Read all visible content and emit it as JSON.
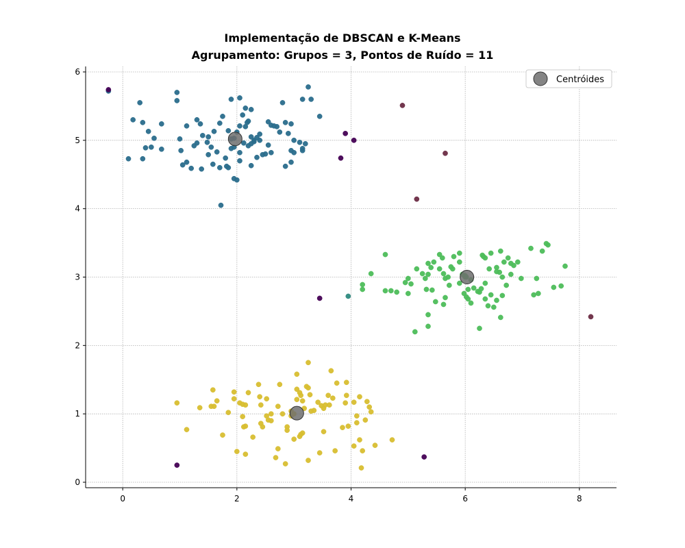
{
  "chart_data": {
    "type": "scatter",
    "title": "Implementação de DBSCAN e K-Means",
    "subtitle": "Agrupamento: Grupos = 3, Pontos de Ruído = 11",
    "xlim": [
      -0.65,
      8.65
    ],
    "ylim": [
      -0.08,
      6.08
    ],
    "x_ticks": [
      0,
      2,
      4,
      6,
      8
    ],
    "x_tick_labels": [
      "0",
      "2",
      "4",
      "6",
      "8"
    ],
    "y_ticks": [
      0,
      1,
      2,
      3,
      4,
      5,
      6
    ],
    "y_tick_labels": [
      "0",
      "1",
      "2",
      "3",
      "4",
      "5",
      "6"
    ],
    "grid": true,
    "legend": {
      "placement": "top-right",
      "entries": [
        "Centróides"
      ]
    },
    "series": [
      {
        "color": "#2a6d8c",
        "points": [
          [
            -0.25,
            5.72
          ],
          [
            0.95,
            5.7
          ],
          [
            0.95,
            5.58
          ],
          [
            0.3,
            5.55
          ],
          [
            0.18,
            5.3
          ],
          [
            0.35,
            5.26
          ],
          [
            0.45,
            5.13
          ],
          [
            0.68,
            5.24
          ],
          [
            0.55,
            5.03
          ],
          [
            0.4,
            4.89
          ],
          [
            0.5,
            4.9
          ],
          [
            0.68,
            4.87
          ],
          [
            0.1,
            4.73
          ],
          [
            0.35,
            4.73
          ],
          [
            1.0,
            5.02
          ],
          [
            1.02,
            4.85
          ],
          [
            1.12,
            5.21
          ],
          [
            1.3,
            5.3
          ],
          [
            1.36,
            5.24
          ],
          [
            1.4,
            5.07
          ],
          [
            1.5,
            5.05
          ],
          [
            1.6,
            5.13
          ],
          [
            1.7,
            5.25
          ],
          [
            1.75,
            5.35
          ],
          [
            1.85,
            5.14
          ],
          [
            1.9,
            5.6
          ],
          [
            2.05,
            5.62
          ],
          [
            2.15,
            5.47
          ],
          [
            2.25,
            5.45
          ],
          [
            2.2,
            5.28
          ],
          [
            2.1,
            5.37
          ],
          [
            2.18,
            5.26
          ],
          [
            2.05,
            5.21
          ],
          [
            2.15,
            5.2
          ],
          [
            2.25,
            5.05
          ],
          [
            2.3,
            5.0
          ],
          [
            2.25,
            4.95
          ],
          [
            2.35,
            5.04
          ],
          [
            2.4,
            5.09
          ],
          [
            2.5,
            4.8
          ],
          [
            2.55,
            5.27
          ],
          [
            2.6,
            5.22
          ],
          [
            2.65,
            5.21
          ],
          [
            2.7,
            5.2
          ],
          [
            2.55,
            4.93
          ],
          [
            2.6,
            4.82
          ],
          [
            2.8,
            5.55
          ],
          [
            2.85,
            5.26
          ],
          [
            2.75,
            5.12
          ],
          [
            2.9,
            5.1
          ],
          [
            2.95,
            5.24
          ],
          [
            3.0,
            5.0
          ],
          [
            3.1,
            4.97
          ],
          [
            3.2,
            4.95
          ],
          [
            3.15,
            5.6
          ],
          [
            3.3,
            5.6
          ],
          [
            3.25,
            5.78
          ],
          [
            3.45,
            5.35
          ],
          [
            1.3,
            4.96
          ],
          [
            1.25,
            4.92
          ],
          [
            1.48,
            4.97
          ],
          [
            1.55,
            4.9
          ],
          [
            1.65,
            4.83
          ],
          [
            1.5,
            4.79
          ],
          [
            1.58,
            4.65
          ],
          [
            1.7,
            4.6
          ],
          [
            1.85,
            4.6
          ],
          [
            1.82,
            4.62
          ],
          [
            1.12,
            4.68
          ],
          [
            1.05,
            4.64
          ],
          [
            1.2,
            4.59
          ],
          [
            1.38,
            4.58
          ],
          [
            1.9,
            4.88
          ],
          [
            1.95,
            5.03
          ],
          [
            2.05,
            4.82
          ],
          [
            2.05,
            4.7
          ],
          [
            2.2,
            4.92
          ],
          [
            2.25,
            4.63
          ],
          [
            2.35,
            4.75
          ],
          [
            2.45,
            4.79
          ],
          [
            2.85,
            4.62
          ],
          [
            2.95,
            4.68
          ],
          [
            2.95,
            4.85
          ],
          [
            3.0,
            4.82
          ],
          [
            3.15,
            4.88
          ],
          [
            1.95,
            4.44
          ],
          [
            2.0,
            4.42
          ],
          [
            1.72,
            4.05
          ],
          [
            1.8,
            4.74
          ],
          [
            1.95,
            4.9
          ],
          [
            1.9,
            5.02
          ],
          [
            2.0,
            5.12
          ],
          [
            2.3,
            4.98
          ],
          [
            2.12,
            4.96
          ],
          [
            2.4,
            5.0
          ],
          [
            3.15,
            4.85
          ]
        ]
      },
      {
        "color": "#4dbd5a",
        "points": [
          [
            4.6,
            3.33
          ],
          [
            4.35,
            3.05
          ],
          [
            4.2,
            2.89
          ],
          [
            4.2,
            2.82
          ],
          [
            4.6,
            2.8
          ],
          [
            4.7,
            2.8
          ],
          [
            4.8,
            2.78
          ],
          [
            4.95,
            2.92
          ],
          [
            5.0,
            2.98
          ],
          [
            5.0,
            2.76
          ],
          [
            5.05,
            2.9
          ],
          [
            5.15,
            3.12
          ],
          [
            5.3,
            2.98
          ],
          [
            5.35,
            3.04
          ],
          [
            5.35,
            3.2
          ],
          [
            5.4,
            3.14
          ],
          [
            5.45,
            3.22
          ],
          [
            5.55,
            3.12
          ],
          [
            5.55,
            3.33
          ],
          [
            5.6,
            3.28
          ],
          [
            5.62,
            3.05
          ],
          [
            5.65,
            2.98
          ],
          [
            5.7,
            3.0
          ],
          [
            5.72,
            2.88
          ],
          [
            5.75,
            3.15
          ],
          [
            5.78,
            3.12
          ],
          [
            5.8,
            3.3
          ],
          [
            5.9,
            3.35
          ],
          [
            5.9,
            3.22
          ],
          [
            5.95,
            3.04
          ],
          [
            6.02,
            3.0
          ],
          [
            5.9,
            2.91
          ],
          [
            5.98,
            2.76
          ],
          [
            6.02,
            2.71
          ],
          [
            6.05,
            2.68
          ],
          [
            6.1,
            2.62
          ],
          [
            6.15,
            2.84
          ],
          [
            6.22,
            2.79
          ],
          [
            6.25,
            2.78
          ],
          [
            6.28,
            2.83
          ],
          [
            6.32,
            3.3
          ],
          [
            6.35,
            3.28
          ],
          [
            6.42,
            3.12
          ],
          [
            6.45,
            3.35
          ],
          [
            6.55,
            3.14
          ],
          [
            6.6,
            3.07
          ],
          [
            6.62,
            3.38
          ],
          [
            6.68,
            3.22
          ],
          [
            6.75,
            3.28
          ],
          [
            6.8,
            3.2
          ],
          [
            6.85,
            3.17
          ],
          [
            6.92,
            3.22
          ],
          [
            6.98,
            2.98
          ],
          [
            6.35,
            2.91
          ],
          [
            6.45,
            2.74
          ],
          [
            6.55,
            2.66
          ],
          [
            6.4,
            2.58
          ],
          [
            6.35,
            2.68
          ],
          [
            6.5,
            2.56
          ],
          [
            6.65,
            2.73
          ],
          [
            6.72,
            2.88
          ],
          [
            6.8,
            3.04
          ],
          [
            6.65,
            3.0
          ],
          [
            6.55,
            3.08
          ],
          [
            5.12,
            2.2
          ],
          [
            5.35,
            2.28
          ],
          [
            5.35,
            2.45
          ],
          [
            5.48,
            2.64
          ],
          [
            5.62,
            2.6
          ],
          [
            5.65,
            2.7
          ],
          [
            6.25,
            2.25
          ],
          [
            6.62,
            2.41
          ],
          [
            7.15,
            3.42
          ],
          [
            7.35,
            3.38
          ],
          [
            7.42,
            3.49
          ],
          [
            7.45,
            3.47
          ],
          [
            7.75,
            3.16
          ],
          [
            7.55,
            2.85
          ],
          [
            7.68,
            2.87
          ],
          [
            7.25,
            2.98
          ],
          [
            7.2,
            2.74
          ],
          [
            7.28,
            2.76
          ],
          [
            5.32,
            2.82
          ],
          [
            5.42,
            2.81
          ],
          [
            5.25,
            3.05
          ],
          [
            6.0,
            3.02
          ],
          [
            6.1,
            2.96
          ],
          [
            6.05,
            2.82
          ],
          [
            6.3,
            3.32
          ],
          [
            6.0,
            3.0
          ]
        ]
      },
      {
        "color": "#d8be30",
        "points": [
          [
            0.95,
            1.16
          ],
          [
            1.12,
            0.77
          ],
          [
            1.35,
            1.09
          ],
          [
            1.55,
            1.11
          ],
          [
            1.6,
            1.11
          ],
          [
            1.58,
            1.35
          ],
          [
            1.65,
            1.19
          ],
          [
            1.75,
            0.69
          ],
          [
            1.85,
            1.02
          ],
          [
            1.95,
            1.32
          ],
          [
            1.95,
            1.22
          ],
          [
            2.05,
            1.16
          ],
          [
            2.1,
            1.14
          ],
          [
            2.15,
            1.13
          ],
          [
            2.2,
            1.31
          ],
          [
            2.1,
            0.96
          ],
          [
            2.12,
            0.81
          ],
          [
            2.15,
            0.82
          ],
          [
            2.0,
            0.45
          ],
          [
            2.15,
            0.41
          ],
          [
            2.28,
            0.66
          ],
          [
            2.38,
            1.43
          ],
          [
            2.4,
            1.25
          ],
          [
            2.42,
            1.13
          ],
          [
            2.42,
            0.86
          ],
          [
            2.45,
            0.81
          ],
          [
            2.52,
            1.22
          ],
          [
            2.52,
            0.97
          ],
          [
            2.6,
            1.0
          ],
          [
            2.6,
            0.9
          ],
          [
            2.72,
            1.11
          ],
          [
            2.75,
            1.43
          ],
          [
            2.8,
            1.0
          ],
          [
            2.88,
            0.81
          ],
          [
            2.88,
            0.76
          ],
          [
            2.72,
            0.49
          ],
          [
            2.68,
            0.36
          ],
          [
            2.85,
            0.27
          ],
          [
            2.95,
            1.04
          ],
          [
            3.0,
            0.63
          ],
          [
            3.05,
            1.36
          ],
          [
            3.05,
            1.58
          ],
          [
            3.1,
            1.31
          ],
          [
            3.12,
            1.27
          ],
          [
            3.15,
            1.19
          ],
          [
            3.18,
            1.08
          ],
          [
            3.05,
            1.21
          ],
          [
            3.22,
            1.4
          ],
          [
            3.25,
            1.38
          ],
          [
            3.28,
            1.28
          ],
          [
            3.3,
            1.04
          ],
          [
            3.25,
            1.75
          ],
          [
            3.42,
            1.17
          ],
          [
            3.48,
            1.12
          ],
          [
            3.52,
            1.08
          ],
          [
            3.55,
            1.13
          ],
          [
            3.6,
            1.27
          ],
          [
            3.62,
            1.13
          ],
          [
            3.65,
            1.63
          ],
          [
            3.68,
            1.23
          ],
          [
            3.75,
            1.45
          ],
          [
            3.85,
            0.8
          ],
          [
            3.9,
            1.16
          ],
          [
            3.92,
            1.27
          ],
          [
            3.92,
            1.46
          ],
          [
            3.95,
            0.82
          ],
          [
            4.05,
            1.17
          ],
          [
            4.15,
            1.25
          ],
          [
            4.1,
            0.97
          ],
          [
            4.1,
            0.87
          ],
          [
            4.15,
            0.62
          ],
          [
            4.05,
            0.53
          ],
          [
            4.2,
            0.46
          ],
          [
            4.25,
            0.91
          ],
          [
            4.28,
            1.18
          ],
          [
            4.32,
            1.1
          ],
          [
            4.35,
            1.03
          ],
          [
            4.42,
            0.54
          ],
          [
            4.72,
            0.62
          ],
          [
            4.18,
            0.21
          ],
          [
            3.25,
            0.32
          ],
          [
            3.45,
            0.43
          ],
          [
            3.52,
            0.74
          ],
          [
            3.72,
            0.46
          ],
          [
            3.15,
            0.72
          ],
          [
            3.1,
            0.67
          ],
          [
            3.12,
            0.7
          ],
          [
            2.95,
            0.97
          ],
          [
            3.35,
            1.05
          ],
          [
            3.0,
            1.0
          ],
          [
            2.55,
            0.91
          ]
        ]
      },
      {
        "color": "#440154",
        "points": [
          [
            -0.25,
            5.74
          ],
          [
            3.9,
            5.1
          ],
          [
            4.05,
            5.0
          ],
          [
            3.82,
            4.74
          ],
          [
            3.45,
            2.69
          ],
          [
            0.95,
            0.25
          ],
          [
            5.28,
            0.37
          ]
        ]
      },
      {
        "color": "#6b2c45",
        "points": [
          [
            4.9,
            5.51
          ],
          [
            5.65,
            4.81
          ],
          [
            5.15,
            4.14
          ],
          [
            8.2,
            2.42
          ]
        ]
      },
      {
        "color": "#2e8a80",
        "points": [
          [
            3.95,
            2.72
          ]
        ]
      }
    ],
    "centroids": {
      "name": "Centróides",
      "color": "#6e6e6e",
      "points": [
        [
          1.97,
          5.02
        ],
        [
          6.03,
          3.0
        ],
        [
          3.05,
          1.01
        ]
      ]
    }
  }
}
